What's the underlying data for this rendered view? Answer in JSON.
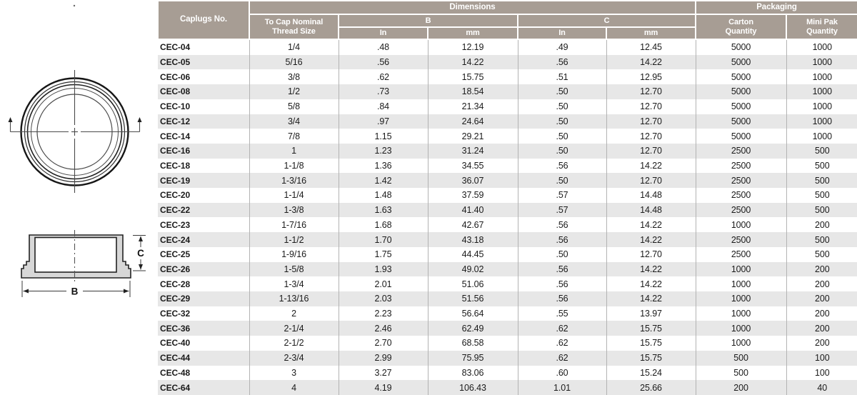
{
  "colors": {
    "header_bg": "#a79d94",
    "row_stripe": "#e7e7e7",
    "drawing_fill": "#d7d7d7",
    "text": "#1b1b1b"
  },
  "table": {
    "col_caplugs": "Caplugs No.",
    "group_dimensions": "Dimensions",
    "group_packaging": "Packaging",
    "col_thread": "To Cap Nominal\nThread Size",
    "col_b": "B",
    "col_c": "C",
    "col_b_in": "In",
    "col_b_mm": "mm",
    "col_c_in": "In",
    "col_c_mm": "mm",
    "col_carton": "Carton\nQuantity",
    "col_minipak": "Mini Pak\nQuantity",
    "rows": [
      [
        "CEC-04",
        "1/4",
        ".48",
        "12.19",
        ".49",
        "12.45",
        "5000",
        "1000"
      ],
      [
        "CEC-05",
        "5/16",
        ".56",
        "14.22",
        ".56",
        "14.22",
        "5000",
        "1000"
      ],
      [
        "CEC-06",
        "3/8",
        ".62",
        "15.75",
        ".51",
        "12.95",
        "5000",
        "1000"
      ],
      [
        "CEC-08",
        "1/2",
        ".73",
        "18.54",
        ".50",
        "12.70",
        "5000",
        "1000"
      ],
      [
        "CEC-10",
        "5/8",
        ".84",
        "21.34",
        ".50",
        "12.70",
        "5000",
        "1000"
      ],
      [
        "CEC-12",
        "3/4",
        ".97",
        "24.64",
        ".50",
        "12.70",
        "5000",
        "1000"
      ],
      [
        "CEC-14",
        "7/8",
        "1.15",
        "29.21",
        ".50",
        "12.70",
        "5000",
        "1000"
      ],
      [
        "CEC-16",
        "1",
        "1.23",
        "31.24",
        ".50",
        "12.70",
        "2500",
        "500"
      ],
      [
        "CEC-18",
        "1-1/8",
        "1.36",
        "34.55",
        ".56",
        "14.22",
        "2500",
        "500"
      ],
      [
        "CEC-19",
        "1-3/16",
        "1.42",
        "36.07",
        ".50",
        "12.70",
        "2500",
        "500"
      ],
      [
        "CEC-20",
        "1-1/4",
        "1.48",
        "37.59",
        ".57",
        "14.48",
        "2500",
        "500"
      ],
      [
        "CEC-22",
        "1-3/8",
        "1.63",
        "41.40",
        ".57",
        "14.48",
        "2500",
        "500"
      ],
      [
        "CEC-23",
        "1-7/16",
        "1.68",
        "42.67",
        ".56",
        "14.22",
        "1000",
        "200"
      ],
      [
        "CEC-24",
        "1-1/2",
        "1.70",
        "43.18",
        ".56",
        "14.22",
        "2500",
        "500"
      ],
      [
        "CEC-25",
        "1-9/16",
        "1.75",
        "44.45",
        ".50",
        "12.70",
        "2500",
        "500"
      ],
      [
        "CEC-26",
        "1-5/8",
        "1.93",
        "49.02",
        ".56",
        "14.22",
        "1000",
        "200"
      ],
      [
        "CEC-28",
        "1-3/4",
        "2.01",
        "51.06",
        ".56",
        "14.22",
        "1000",
        "200"
      ],
      [
        "CEC-29",
        "1-13/16",
        "2.03",
        "51.56",
        ".56",
        "14.22",
        "1000",
        "200"
      ],
      [
        "CEC-32",
        "2",
        "2.23",
        "56.64",
        ".55",
        "13.97",
        "1000",
        "200"
      ],
      [
        "CEC-36",
        "2-1/4",
        "2.46",
        "62.49",
        ".62",
        "15.75",
        "1000",
        "200"
      ],
      [
        "CEC-40",
        "2-1/2",
        "2.70",
        "68.58",
        ".62",
        "15.75",
        "1000",
        "200"
      ],
      [
        "CEC-44",
        "2-3/4",
        "2.99",
        "75.95",
        ".62",
        "15.75",
        "500",
        "100"
      ],
      [
        "CEC-48",
        "3",
        "3.27",
        "83.06",
        ".60",
        "15.24",
        "500",
        "100"
      ],
      [
        "CEC-64",
        "4",
        "4.19",
        "106.43",
        "1.01",
        "25.66",
        "200",
        "40"
      ]
    ]
  },
  "diagram": {
    "label_b": "B",
    "label_c": "C"
  }
}
